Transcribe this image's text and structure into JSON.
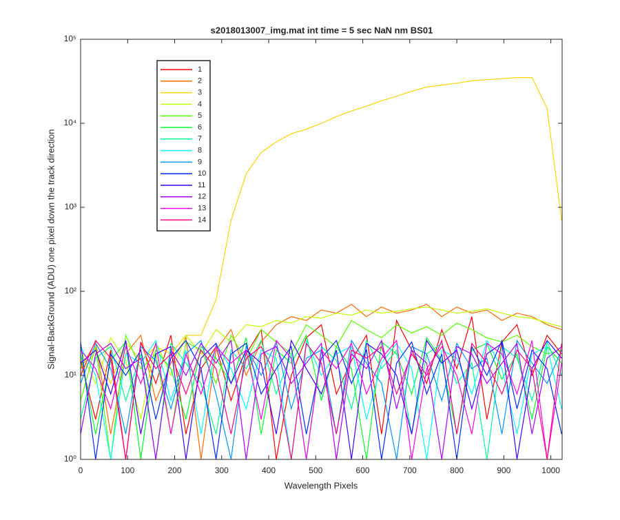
{
  "chart_data": {
    "type": "line",
    "title": "s2018013007_img.mat int time = 5 sec  NaN nm BS01",
    "x_label": "Wavelength Pixels",
    "y_label": "Signal-BackGround (ADU) one pixel down the track direction",
    "log_y": true,
    "legend_position": "upper-left",
    "xlim": [
      0,
      1024
    ],
    "xticks": [
      0,
      100,
      200,
      300,
      400,
      500,
      600,
      700,
      800,
      900,
      1000
    ],
    "ylim": [
      1,
      100000
    ],
    "yticks": [
      {
        "value": 1,
        "label": "10⁰"
      },
      {
        "value": 10,
        "label": "10¹"
      },
      {
        "value": 100,
        "label": "10²"
      },
      {
        "value": 1000,
        "label": "10³"
      },
      {
        "value": 10000,
        "label": "10⁴"
      },
      {
        "value": 100000,
        "label": "10⁵"
      }
    ],
    "x": [
      0,
      32,
      64,
      96,
      128,
      160,
      192,
      224,
      256,
      288,
      320,
      352,
      384,
      416,
      448,
      480,
      512,
      544,
      576,
      608,
      640,
      672,
      704,
      736,
      768,
      800,
      832,
      864,
      896,
      928,
      960,
      992,
      1023
    ],
    "series": [
      {
        "name": "1",
        "color": "#ff0000",
        "values": [
          15,
          3,
          20,
          1,
          25,
          8,
          30,
          2,
          12,
          22,
          5,
          18,
          35,
          1,
          10,
          28,
          40,
          6,
          15,
          30,
          2,
          45,
          20,
          8,
          35,
          12,
          50,
          3,
          25,
          40,
          10,
          30,
          18
        ]
      },
      {
        "name": "2",
        "color": "#ff6a00",
        "values": [
          12,
          25,
          2,
          18,
          30,
          5,
          14,
          28,
          1,
          20,
          35,
          10,
          25,
          40,
          50,
          45,
          60,
          55,
          70,
          50,
          65,
          55,
          60,
          70,
          50,
          65,
          55,
          60,
          45,
          55,
          50,
          40,
          35
        ]
      },
      {
        "name": "3",
        "color": "#ffd500",
        "values": [
          10,
          20,
          8,
          25,
          15,
          22,
          18,
          30,
          30,
          80,
          700,
          2500,
          4500,
          6000,
          7500,
          8500,
          10000,
          12000,
          14000,
          16000,
          18500,
          21000,
          24000,
          27000,
          28500,
          30000,
          32000,
          33000,
          34000,
          35000,
          35000,
          15000,
          700
        ]
      },
      {
        "name": "4",
        "color": "#bfff00",
        "values": [
          20,
          8,
          28,
          15,
          3,
          25,
          10,
          30,
          18,
          35,
          25,
          40,
          38,
          45,
          42,
          50,
          48,
          55,
          52,
          60,
          55,
          58,
          62,
          65,
          60,
          55,
          58,
          62,
          55,
          50,
          48,
          42,
          38
        ]
      },
      {
        "name": "5",
        "color": "#55ff00",
        "values": [
          5,
          22,
          1,
          30,
          12,
          18,
          2,
          25,
          20,
          8,
          30,
          15,
          35,
          25,
          18,
          40,
          30,
          22,
          45,
          35,
          28,
          40,
          32,
          38,
          30,
          42,
          35,
          28,
          25,
          30,
          22,
          18,
          20
        ]
      },
      {
        "name": "6",
        "color": "#00ff2b",
        "values": [
          18,
          2,
          15,
          25,
          1,
          20,
          12,
          3,
          22,
          16,
          8,
          28,
          2,
          20,
          14,
          30,
          5,
          22,
          12,
          1,
          25,
          18,
          6,
          28,
          15,
          2,
          20,
          24,
          9,
          18,
          3,
          22,
          14
        ]
      },
      {
        "name": "7",
        "color": "#00ff95",
        "values": [
          3,
          16,
          22,
          5,
          18,
          1,
          24,
          14,
          8,
          2,
          20,
          12,
          26,
          6,
          18,
          1,
          22,
          15,
          4,
          26,
          12,
          20,
          2,
          18,
          24,
          8,
          14,
          1,
          22,
          16,
          5,
          25,
          10
        ]
      },
      {
        "name": "8",
        "color": "#00ffff",
        "values": [
          22,
          10,
          1,
          18,
          14,
          26,
          5,
          20,
          2,
          24,
          12,
          4,
          20,
          16,
          1,
          26,
          10,
          18,
          22,
          3,
          14,
          24,
          12,
          1,
          20,
          16,
          6,
          26,
          12,
          2,
          18,
          22,
          4
        ]
      },
      {
        "name": "9",
        "color": "#0095ff",
        "values": [
          8,
          24,
          12,
          2,
          22,
          15,
          4,
          18,
          26,
          6,
          1,
          22,
          10,
          25,
          4,
          16,
          20,
          2,
          26,
          14,
          8,
          1,
          22,
          18,
          5,
          24,
          12,
          16,
          2,
          26,
          14,
          8,
          20
        ]
      },
      {
        "name": "10",
        "color": "#002bff",
        "values": [
          25,
          1,
          18,
          10,
          20,
          3,
          16,
          26,
          12,
          1,
          18,
          24,
          6,
          12,
          22,
          2,
          16,
          26,
          8,
          20,
          1,
          14,
          25,
          6,
          18,
          1,
          22,
          10,
          26,
          4,
          20,
          12,
          2
        ]
      },
      {
        "name": "11",
        "color": "#4000ff",
        "values": [
          14,
          20,
          6,
          26,
          2,
          18,
          22,
          1,
          16,
          24,
          8,
          20,
          14,
          2,
          26,
          12,
          6,
          20,
          1,
          24,
          18,
          10,
          2,
          26,
          14,
          20,
          4,
          18,
          24,
          1,
          12,
          26,
          16
        ]
      },
      {
        "name": "12",
        "color": "#aa00ff",
        "values": [
          2,
          18,
          24,
          12,
          16,
          1,
          20,
          10,
          24,
          14,
          26,
          1,
          18,
          22,
          8,
          14,
          24,
          1,
          18,
          12,
          26,
          4,
          20,
          14,
          1,
          22,
          18,
          8,
          14,
          24,
          2,
          16,
          22
        ]
      },
      {
        "name": "13",
        "color": "#ff00ea",
        "values": [
          20,
          12,
          4,
          22,
          8,
          24,
          2,
          18,
          6,
          22,
          14,
          20,
          3,
          26,
          16,
          1,
          20,
          12,
          24,
          6,
          16,
          26,
          1,
          12,
          22,
          10,
          2,
          24,
          18,
          6,
          26,
          1,
          14
        ]
      },
      {
        "name": "14",
        "color": "#ff0080",
        "values": [
          10,
          26,
          16,
          1,
          24,
          12,
          18,
          6,
          20,
          12,
          2,
          16,
          22,
          10,
          1,
          24,
          14,
          2,
          20,
          16,
          22,
          6,
          18,
          10,
          26,
          2,
          24,
          14,
          6,
          20,
          12,
          1,
          24
        ]
      }
    ]
  }
}
